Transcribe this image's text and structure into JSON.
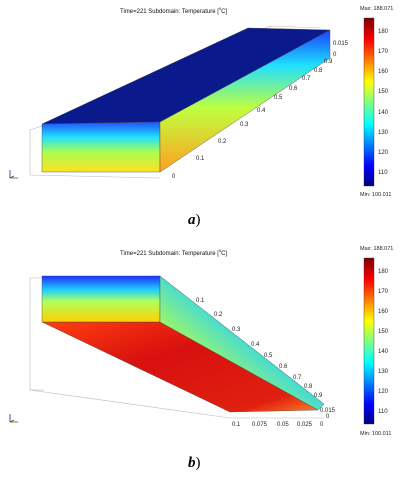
{
  "panels": [
    {
      "id": "a",
      "title": "Time=221   Subdomain: Temperature [",
      "unit_sup": "0",
      "unit_tail": "C]",
      "legend": {
        "max_label": "Max: 188.071",
        "min_label": "Min: 100.011",
        "ticks": [
          "180",
          "170",
          "160",
          "150",
          "140",
          "130",
          "120",
          "110"
        ]
      },
      "axis_long": [
        "0",
        "0.1",
        "0.2",
        "0.3",
        "0.4",
        "0.5",
        "0.6",
        "0.7",
        "0.8",
        "0.9"
      ],
      "axis_short": [
        "0",
        "0.015"
      ],
      "caption": "a"
    },
    {
      "id": "b",
      "title": "Time=221   Subdomain: Temperature [",
      "unit_sup": "0",
      "unit_tail": "C]",
      "legend": {
        "max_label": "Max: 188.071",
        "min_label": "Min: 100.011",
        "ticks": [
          "180",
          "170",
          "160",
          "150",
          "140",
          "130",
          "120",
          "110"
        ]
      },
      "axis_long": [
        "0.1",
        "0.2",
        "0.3",
        "0.4",
        "0.5",
        "0.6",
        "0.7",
        "0.8",
        "0.9"
      ],
      "axis_short": [
        "0",
        "0.015"
      ],
      "axis_width": [
        "0.1",
        "0.075",
        "0.05",
        "0.025",
        "0"
      ],
      "caption": "b"
    }
  ],
  "colors": {
    "cold": "#0b1f8e",
    "hot": "#d01010",
    "mid": "#20e0ff"
  }
}
